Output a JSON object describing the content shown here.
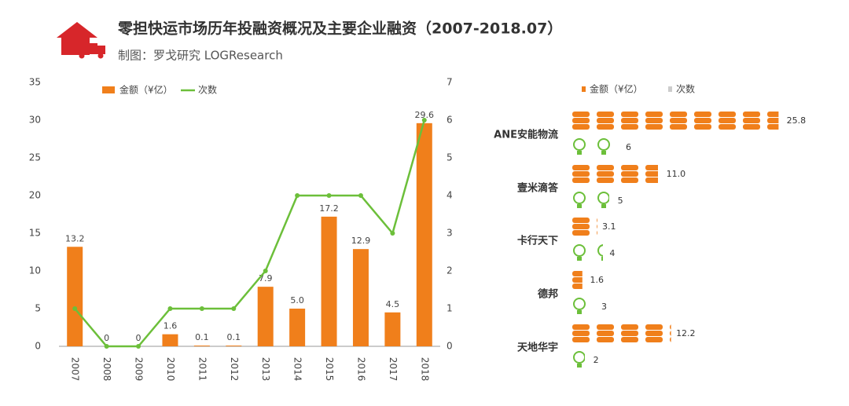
{
  "chart_data": [
    {
      "type": "bar",
      "title": "零担快运市场历年投融资概况及主要企业融资（2007-2018.07）",
      "subtitle": "制图：罗戈研究 LOGResearch",
      "categories": [
        "2007",
        "2008",
        "2009",
        "2010",
        "2011",
        "2012",
        "2013",
        "2014",
        "2015",
        "2016",
        "2017",
        "2018"
      ],
      "series": [
        {
          "name": "金额（¥亿）",
          "color": "#f07f1b",
          "type": "bar",
          "values": [
            13.2,
            0,
            0,
            1.6,
            0.1,
            0.1,
            7.9,
            5.0,
            17.2,
            12.9,
            4.5,
            29.6
          ],
          "value_labels": [
            "13.2",
            "0",
            "0",
            "1.6",
            "0.1",
            "0.1",
            "7.9",
            "5.0",
            "17.2",
            "12.9",
            "4.5",
            "29.6"
          ]
        },
        {
          "name": "次数",
          "color": "#6cbf3a",
          "type": "line",
          "axis": "y2",
          "values": [
            1,
            0,
            0,
            1,
            1,
            1,
            2,
            4,
            4,
            4,
            3,
            6
          ]
        }
      ],
      "ylim": [
        0,
        35
      ],
      "yticks": [
        0,
        5,
        10,
        15,
        20,
        25,
        30,
        35
      ],
      "y2lim": [
        0,
        7
      ],
      "y2ticks": [
        0,
        1,
        2,
        3,
        4,
        5,
        6,
        7
      ]
    },
    {
      "type": "pictograph",
      "categories": [
        "ANE安能物流",
        "壹米滴答",
        "卡行天下",
        "德邦",
        "天地华宇"
      ],
      "series": [
        {
          "name": "金额（¥亿）",
          "color": "#f07f1b",
          "values": [
            25.8,
            11.0,
            3.1,
            1.6,
            12.2
          ],
          "value_labels": [
            "25.8",
            "11.0",
            "3.1",
            "1.6",
            "12.2"
          ]
        },
        {
          "name": "次数",
          "color": "#6cbf3a",
          "values": [
            6,
            5,
            4,
            3,
            2
          ]
        }
      ]
    }
  ]
}
